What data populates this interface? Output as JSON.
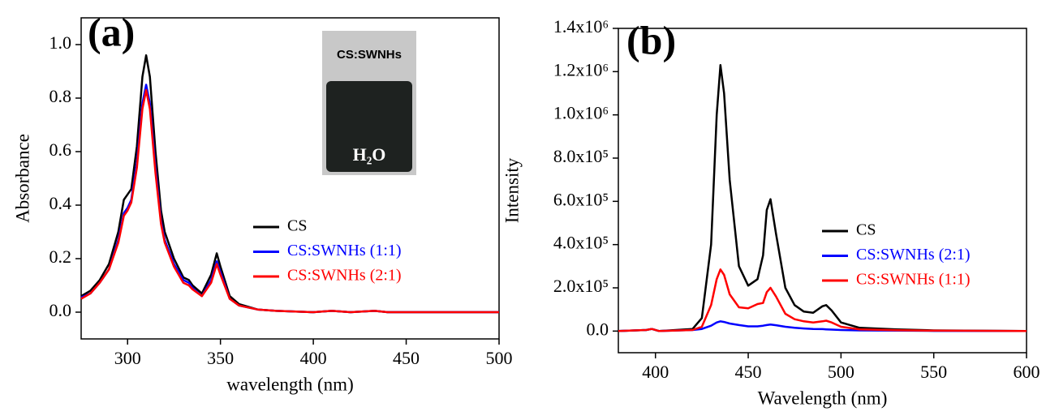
{
  "chart_data": [
    {
      "type": "line",
      "panel_label": "(a)",
      "x_label": "wavelength (nm)",
      "y_label": "Absorbance",
      "inset_labels": [
        "CS:SWNHs",
        "H₂O"
      ],
      "x": [
        275,
        280,
        285,
        290,
        295,
        298,
        300,
        302,
        305,
        308,
        310,
        312,
        315,
        318,
        320,
        325,
        330,
        333,
        335,
        340,
        345,
        348,
        350,
        355,
        360,
        370,
        380,
        400,
        410,
        420,
        433,
        440,
        450,
        500
      ],
      "series": [
        {
          "name": "CS",
          "color": "#000000",
          "values": [
            0.06,
            0.08,
            0.12,
            0.18,
            0.3,
            0.42,
            0.44,
            0.46,
            0.62,
            0.88,
            0.96,
            0.88,
            0.6,
            0.38,
            0.3,
            0.2,
            0.13,
            0.12,
            0.1,
            0.07,
            0.14,
            0.22,
            0.17,
            0.06,
            0.03,
            0.01,
            0.005,
            0,
            0.005,
            0,
            0.005,
            0,
            0,
            0
          ]
        },
        {
          "name": "CS:SWNHs (1:1)",
          "color": "#0000ff",
          "values": [
            0.055,
            0.07,
            0.11,
            0.16,
            0.27,
            0.37,
            0.39,
            0.42,
            0.56,
            0.78,
            0.85,
            0.78,
            0.54,
            0.34,
            0.27,
            0.18,
            0.12,
            0.11,
            0.09,
            0.06,
            0.12,
            0.19,
            0.15,
            0.05,
            0.025,
            0.01,
            0.005,
            0,
            0.005,
            0,
            0.005,
            0,
            0,
            0
          ]
        },
        {
          "name": "CS:SWNHs (2:1)",
          "color": "#ff0000",
          "values": [
            0.05,
            0.07,
            0.11,
            0.16,
            0.26,
            0.36,
            0.38,
            0.41,
            0.54,
            0.76,
            0.83,
            0.76,
            0.52,
            0.33,
            0.26,
            0.17,
            0.11,
            0.1,
            0.085,
            0.06,
            0.11,
            0.18,
            0.14,
            0.05,
            0.025,
            0.01,
            0.005,
            0,
            0.005,
            0,
            0.005,
            0,
            0,
            0
          ]
        }
      ],
      "xlim": [
        275,
        500
      ],
      "xticks": [
        300,
        350,
        400,
        450,
        500
      ],
      "ylim": [
        -0.1,
        1.1
      ],
      "yticks": [
        {
          "value": 0,
          "label": "0.0"
        },
        0.2,
        0.4,
        0.6,
        0.8,
        {
          "value": 1,
          "label": "1.0"
        }
      ]
    },
    {
      "type": "line",
      "panel_label": "(b)",
      "x_label": "Wavelength (nm)",
      "y_label": "Intensity",
      "x": [
        380,
        395,
        398,
        402,
        420,
        425,
        430,
        433,
        435,
        437,
        440,
        445,
        450,
        455,
        458,
        460,
        462,
        465,
        470,
        475,
        480,
        485,
        490,
        492,
        495,
        500,
        510,
        530,
        550,
        600
      ],
      "series": [
        {
          "name": "CS",
          "color": "#000000",
          "values": [
            0,
            5000,
            10000,
            0,
            10000,
            60000,
            400000,
            1000000,
            1230000,
            1100000,
            700000,
            300000,
            210000,
            240000,
            350000,
            560000,
            610000,
            450000,
            200000,
            120000,
            90000,
            85000,
            115000,
            120000,
            95000,
            40000,
            15000,
            8000,
            3000,
            0
          ]
        },
        {
          "name": "CS:SWNHs (2:1)",
          "color": "#0000ff",
          "values": [
            0,
            5000,
            10000,
            0,
            5000,
            10000,
            25000,
            40000,
            45000,
            42000,
            35000,
            28000,
            22000,
            22000,
            25000,
            28000,
            30000,
            27000,
            20000,
            15000,
            12000,
            10000,
            9000,
            8000,
            7000,
            5000,
            3000,
            2000,
            1000,
            0
          ]
        },
        {
          "name": "CS:SWNHs (1:1)",
          "color": "#ff0000",
          "values": [
            0,
            5000,
            10000,
            0,
            5000,
            20000,
            120000,
            240000,
            285000,
            260000,
            170000,
            110000,
            105000,
            125000,
            130000,
            180000,
            200000,
            160000,
            80000,
            55000,
            45000,
            40000,
            45000,
            48000,
            40000,
            20000,
            8000,
            4000,
            2000,
            0
          ]
        }
      ],
      "xlim": [
        380,
        600
      ],
      "xticks": [
        400,
        450,
        500,
        550,
        600
      ],
      "ylim": [
        -100000,
        1400000
      ],
      "yticks": [
        {
          "value": 0,
          "label": "0.0"
        },
        {
          "value": 200000,
          "label": "2.0x10⁵"
        },
        {
          "value": 400000,
          "label": "4.0x10⁵"
        },
        {
          "value": 600000,
          "label": "6.0x10⁵"
        },
        {
          "value": 800000,
          "label": "8.0x10⁵"
        },
        {
          "value": 1000000,
          "label": "1.0x10⁶"
        },
        {
          "value": 1200000,
          "label": "1.2x10⁶"
        },
        {
          "value": 1400000,
          "label": "1.4x10⁶"
        }
      ]
    }
  ]
}
